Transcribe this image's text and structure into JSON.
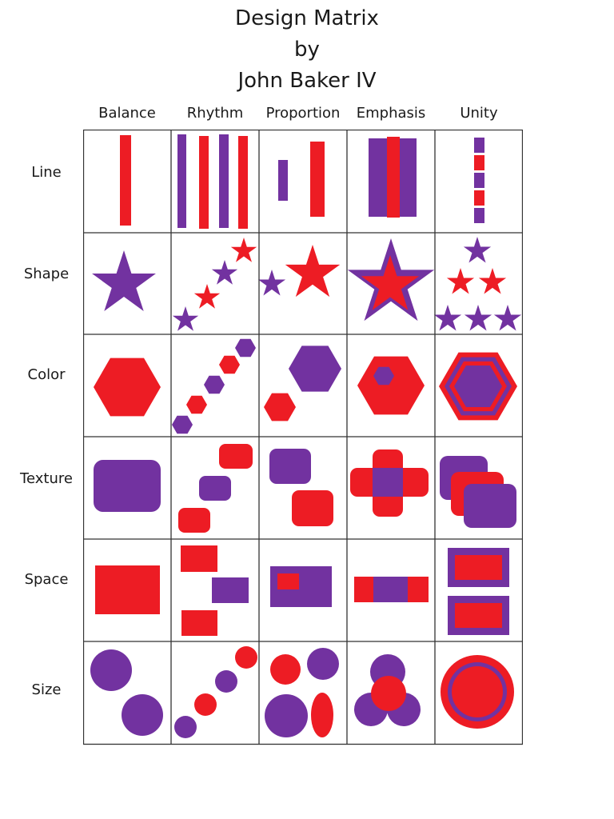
{
  "title": {
    "line1": "Design Matrix",
    "line2": "by",
    "line3": "John Baker IV"
  },
  "columns": [
    "Balance",
    "Rhythm",
    "Proportion",
    "Emphasis",
    "Unity"
  ],
  "rows": [
    "Line",
    "Shape",
    "Color",
    "Texture",
    "Space",
    "Size"
  ],
  "colors": {
    "purple": "#7232a0",
    "red": "#ed1c24",
    "grid": "#333333"
  },
  "cell_icons": [
    [
      "vertical-bar-icon",
      "alternating-bars-icon",
      "unequal-bars-icon",
      "bar-highlight-icon",
      "stacked-squares-icon"
    ],
    [
      "star-icon",
      "diagonal-stars-icon",
      "small-large-star-icon",
      "star-in-star-icon",
      "star-pyramid-icon"
    ],
    [
      "hexagon-icon",
      "diagonal-hexagons-icon",
      "small-large-hexagon-icon",
      "hexagon-spot-icon",
      "nested-hexagons-icon"
    ],
    [
      "rounded-rect-icon",
      "diagonal-rounded-rects-icon",
      "offset-rounded-rects-icon",
      "cross-rounded-rects-icon",
      "stacked-rounded-rects-icon"
    ],
    [
      "rectangle-icon",
      "staggered-rects-icon",
      "rect-in-rect-icon",
      "banded-rect-icon",
      "framed-rects-icon"
    ],
    [
      "two-circles-icon",
      "diagonal-circles-icon",
      "circles-ellipse-icon",
      "overlapping-circles-icon",
      "concentric-circles-icon"
    ]
  ]
}
